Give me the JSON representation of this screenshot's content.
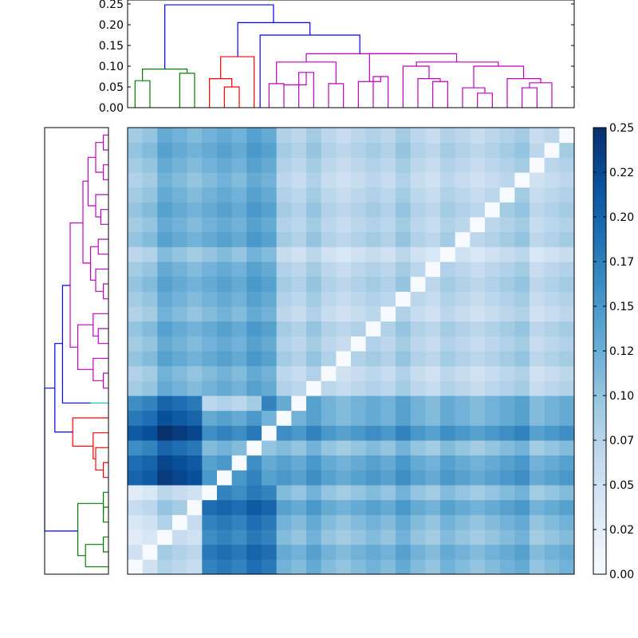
{
  "chart_data": [
    {
      "type": "dendrogram",
      "orientation": "top",
      "ylim": [
        0,
        0.25
      ],
      "y_ticks": [
        "0.00",
        "0.05",
        "0.10",
        "0.15",
        "0.20",
        "0.25"
      ],
      "y_tick_values": [
        0,
        0.05,
        0.1,
        0.15,
        0.2,
        0.25
      ],
      "leaves": 30,
      "cluster_colors": {
        "green": "#008000",
        "red": "#ff0000",
        "cyan": "#00bfbf",
        "magenta": "#bf00bf",
        "above_threshold": "#0000ff"
      },
      "links": [
        {
          "a": 0.5,
          "b": 1.5,
          "y_a": 0.0,
          "y_b": 0.0,
          "h": 0.065,
          "color": "green"
        },
        {
          "a": 3.5,
          "b": 4.5,
          "y_a": 0.0,
          "y_b": 0.0,
          "h": 0.083,
          "color": "green"
        },
        {
          "a": 1.0,
          "b": 4.0,
          "y_a": 0.065,
          "y_b": 0.083,
          "h": 0.093,
          "color": "green"
        },
        {
          "a": 6.5,
          "b": 7.5,
          "y_a": 0.0,
          "y_b": 0.0,
          "h": 0.05,
          "color": "red"
        },
        {
          "a": 5.5,
          "b": 7.0,
          "y_a": 0.0,
          "y_b": 0.05,
          "h": 0.07,
          "color": "red"
        },
        {
          "a": 6.25,
          "b": 8.5,
          "y_a": 0.07,
          "y_b": 0.0,
          "h": 0.123,
          "color": "red"
        },
        {
          "a": 11.5,
          "b": 12.5,
          "y_a": 0.0,
          "y_b": 0.0,
          "h": 0.085,
          "color": "magenta"
        },
        {
          "a": 10.5,
          "b": 12.0,
          "y_a": 0.0,
          "y_b": 0.085,
          "h": 0.055,
          "color": "magenta"
        },
        {
          "a": 9.5,
          "b": 10.5,
          "y_a": 0.0,
          "y_b": 0.055,
          "h": 0.058,
          "color": "magenta"
        },
        {
          "a": 13.5,
          "b": 14.5,
          "y_a": 0.0,
          "y_b": 0.0,
          "h": 0.058,
          "color": "magenta"
        },
        {
          "a": 10.0,
          "b": 14.0,
          "y_a": 0.058,
          "y_b": 0.058,
          "h": 0.11,
          "color": "magenta"
        },
        {
          "a": 16.5,
          "b": 17.5,
          "y_a": 0.0,
          "y_b": 0.0,
          "h": 0.075,
          "color": "magenta"
        },
        {
          "a": 15.5,
          "b": 17.0,
          "y_a": 0.0,
          "y_b": 0.075,
          "h": 0.063,
          "color": "magenta"
        },
        {
          "a": 20.5,
          "b": 21.5,
          "y_a": 0.0,
          "y_b": 0.0,
          "h": 0.063,
          "color": "magenta"
        },
        {
          "a": 19.5,
          "b": 21.0,
          "y_a": 0.0,
          "y_b": 0.063,
          "h": 0.07,
          "color": "magenta"
        },
        {
          "a": 18.5,
          "b": 20.25,
          "y_a": 0.0,
          "y_b": 0.07,
          "h": 0.1,
          "color": "magenta"
        },
        {
          "a": 23.5,
          "b": 24.5,
          "y_a": 0.0,
          "y_b": 0.0,
          "h": 0.035,
          "color": "magenta"
        },
        {
          "a": 22.5,
          "b": 24.0,
          "y_a": 0.0,
          "y_b": 0.035,
          "h": 0.048,
          "color": "magenta"
        },
        {
          "a": 26.5,
          "b": 27.5,
          "y_a": 0.0,
          "y_b": 0.0,
          "h": 0.048,
          "color": "magenta"
        },
        {
          "a": 27.0,
          "b": 28.5,
          "y_a": 0.048,
          "y_b": 0.0,
          "h": 0.06,
          "color": "magenta"
        },
        {
          "a": 25.5,
          "b": 27.75,
          "y_a": 0.0,
          "y_b": 0.06,
          "h": 0.07,
          "color": "magenta"
        },
        {
          "a": 23.25,
          "b": 26.6,
          "y_a": 0.048,
          "y_b": 0.07,
          "h": 0.1,
          "color": "magenta"
        },
        {
          "a": 19.4,
          "b": 24.9,
          "y_a": 0.1,
          "y_b": 0.1,
          "h": 0.11,
          "color": "magenta"
        },
        {
          "a": 16.25,
          "b": 22.1,
          "y_a": 0.063,
          "y_b": 0.11,
          "h": 0.13,
          "color": "magenta"
        },
        {
          "a": 12.0,
          "b": 19.2,
          "y_a": 0.11,
          "y_b": 0.13,
          "h": 0.13,
          "color": "magenta"
        },
        {
          "a": 8.9,
          "b": 15.6,
          "y_a": 0.0,
          "y_b": 0.13,
          "h": 0.175,
          "color": "above_threshold"
        },
        {
          "a": 7.4,
          "b": 12.25,
          "y_a": 0.123,
          "y_b": 0.175,
          "h": 0.205,
          "color": "above_threshold"
        },
        {
          "a": 2.5,
          "b": 9.8,
          "y_a": 0.093,
          "y_b": 0.205,
          "h": 0.248,
          "color": "above_threshold"
        }
      ]
    },
    {
      "type": "dendrogram",
      "orientation": "left",
      "leaves": 30,
      "cluster_colors": {
        "green": "#008000",
        "red": "#ff0000",
        "cyan": "#00bfbf",
        "magenta": "#bf00bf",
        "above_threshold": "#0000ff"
      },
      "links": [
        {
          "a": 1.5,
          "b": 2.5,
          "y_a": 0.0,
          "y_b": 0.0,
          "h": 0.02,
          "color": "green"
        },
        {
          "a": 0.5,
          "b": 2.0,
          "y_a": 0.0,
          "y_b": 0.02,
          "h": 0.09,
          "color": "green"
        },
        {
          "a": 3.5,
          "b": 4.5,
          "y_a": 0.0,
          "y_b": 0.0,
          "h": 0.02,
          "color": "green"
        },
        {
          "a": 4.0,
          "b": 5.5,
          "y_a": 0.02,
          "y_b": 0.0,
          "h": 0.02,
          "color": "green"
        },
        {
          "a": 1.25,
          "b": 4.75,
          "y_a": 0.09,
          "y_b": 0.02,
          "h": 0.12,
          "color": "green"
        },
        {
          "a": 6.5,
          "b": 7.5,
          "y_a": 0.0,
          "y_b": 0.0,
          "h": 0.02,
          "color": "red"
        },
        {
          "a": 7.0,
          "b": 8.5,
          "y_a": 0.02,
          "y_b": 0.0,
          "h": 0.05,
          "color": "red"
        },
        {
          "a": 7.75,
          "b": 9.5,
          "y_a": 0.05,
          "y_b": 0.0,
          "h": 0.06,
          "color": "red"
        },
        {
          "a": 8.6,
          "b": 10.5,
          "y_a": 0.06,
          "y_b": 0.0,
          "h": 0.14,
          "color": "red"
        },
        {
          "a": 11.5,
          "b": 11.5,
          "y_a": 0.0,
          "y_b": 0.0,
          "h": 0.07,
          "color": "cyan"
        },
        {
          "a": 12.5,
          "b": 13.5,
          "y_a": 0.0,
          "y_b": 0.0,
          "h": 0.02,
          "color": "magenta"
        },
        {
          "a": 13.0,
          "b": 14.5,
          "y_a": 0.02,
          "y_b": 0.0,
          "h": 0.06,
          "color": "magenta"
        },
        {
          "a": 15.5,
          "b": 16.5,
          "y_a": 0.0,
          "y_b": 0.0,
          "h": 0.04,
          "color": "magenta"
        },
        {
          "a": 16.0,
          "b": 17.5,
          "y_a": 0.04,
          "y_b": 0.0,
          "h": 0.06,
          "color": "magenta"
        },
        {
          "a": 13.75,
          "b": 16.75,
          "y_a": 0.06,
          "y_b": 0.06,
          "h": 0.12,
          "color": "magenta"
        },
        {
          "a": 18.5,
          "b": 19.5,
          "y_a": 0.0,
          "y_b": 0.0,
          "h": 0.02,
          "color": "magenta"
        },
        {
          "a": 19.0,
          "b": 20.5,
          "y_a": 0.02,
          "y_b": 0.0,
          "h": 0.05,
          "color": "magenta"
        },
        {
          "a": 21.5,
          "b": 22.5,
          "y_a": 0.0,
          "y_b": 0.0,
          "h": 0.04,
          "color": "magenta"
        },
        {
          "a": 19.75,
          "b": 22.0,
          "y_a": 0.05,
          "y_b": 0.04,
          "h": 0.07,
          "color": "magenta"
        },
        {
          "a": 23.5,
          "b": 24.5,
          "y_a": 0.0,
          "y_b": 0.0,
          "h": 0.03,
          "color": "magenta"
        },
        {
          "a": 24.0,
          "b": 25.5,
          "y_a": 0.03,
          "y_b": 0.0,
          "h": 0.05,
          "color": "magenta"
        },
        {
          "a": 26.5,
          "b": 27.5,
          "y_a": 0.0,
          "y_b": 0.0,
          "h": 0.02,
          "color": "magenta"
        },
        {
          "a": 28.5,
          "b": 29.5,
          "y_a": 0.0,
          "y_b": 0.0,
          "h": 0.02,
          "color": "magenta"
        },
        {
          "a": 27.0,
          "b": 29.0,
          "y_a": 0.02,
          "y_b": 0.02,
          "h": 0.05,
          "color": "magenta"
        },
        {
          "a": 24.75,
          "b": 28.0,
          "y_a": 0.05,
          "y_b": 0.05,
          "h": 0.08,
          "color": "magenta"
        },
        {
          "a": 20.9,
          "b": 26.4,
          "y_a": 0.07,
          "y_b": 0.08,
          "h": 0.1,
          "color": "magenta"
        },
        {
          "a": 15.25,
          "b": 23.6,
          "y_a": 0.12,
          "y_b": 0.1,
          "h": 0.15,
          "color": "magenta"
        },
        {
          "a": 11.5,
          "b": 19.4,
          "y_a": 0.07,
          "y_b": 0.15,
          "h": 0.18,
          "color": "above_threshold"
        },
        {
          "a": 9.55,
          "b": 15.5,
          "y_a": 0.14,
          "y_b": 0.18,
          "h": 0.21,
          "color": "above_threshold"
        },
        {
          "a": 2.9,
          "b": 12.5,
          "y_a": 0.12,
          "y_b": 0.21,
          "h": 0.25,
          "color": "above_threshold"
        }
      ]
    },
    {
      "type": "heatmap",
      "rows": 30,
      "cols": 30,
      "vmin": 0.0,
      "vmax": 0.25,
      "colormap": "Blues",
      "colorbar_ticks": [
        "0.00",
        "0.02",
        "0.05",
        "0.07",
        "0.10",
        "0.12",
        "0.15",
        "0.17",
        "0.20",
        "0.22",
        "0.25"
      ],
      "colorbar_tick_values": [
        0.0,
        0.025,
        0.05,
        0.075,
        0.1,
        0.125,
        0.15,
        0.175,
        0.2,
        0.225,
        0.25
      ],
      "row_clusters": [
        [
          0,
          6
        ],
        [
          6,
          11
        ],
        [
          11,
          12
        ],
        [
          12,
          30
        ]
      ],
      "col_clusters": [
        [
          0,
          5
        ],
        [
          5,
          9
        ],
        [
          9,
          10
        ],
        [
          10,
          30
        ]
      ],
      "block_levels_top_to_bottom": [
        [
          0.1,
          0.12,
          0.09,
          0.07
        ],
        [
          0.16,
          0.06,
          0.12,
          0.11
        ],
        [
          0.19,
          0.13,
          0.08,
          0.12
        ],
        [
          0.05,
          0.17,
          0.14,
          0.11
        ]
      ],
      "diagonal_value": 0.0,
      "row_offsets": [
        0.0,
        0.01,
        -0.01,
        0.0,
        0.02,
        -0.01,
        0.02,
        0.01,
        -0.02,
        0.03,
        0.0,
        0.01,
        0.0,
        -0.01,
        0.01,
        0.0,
        0.01,
        -0.01,
        0.0,
        0.01,
        0.0,
        -0.02,
        0.01,
        0.0,
        0.01,
        0.0,
        -0.01,
        0.0,
        0.01,
        0.0
      ],
      "col_offsets": [
        -0.01,
        0.0,
        0.03,
        0.02,
        0.01,
        0.0,
        0.01,
        0.0,
        0.02,
        0.04,
        0.01,
        0.0,
        0.02,
        0.0,
        -0.01,
        0.0,
        0.01,
        0.0,
        0.02,
        0.0,
        -0.01,
        0.01,
        0.0,
        -0.01,
        0.0,
        0.01,
        0.02,
        -0.01,
        0.0,
        0.01
      ]
    }
  ]
}
